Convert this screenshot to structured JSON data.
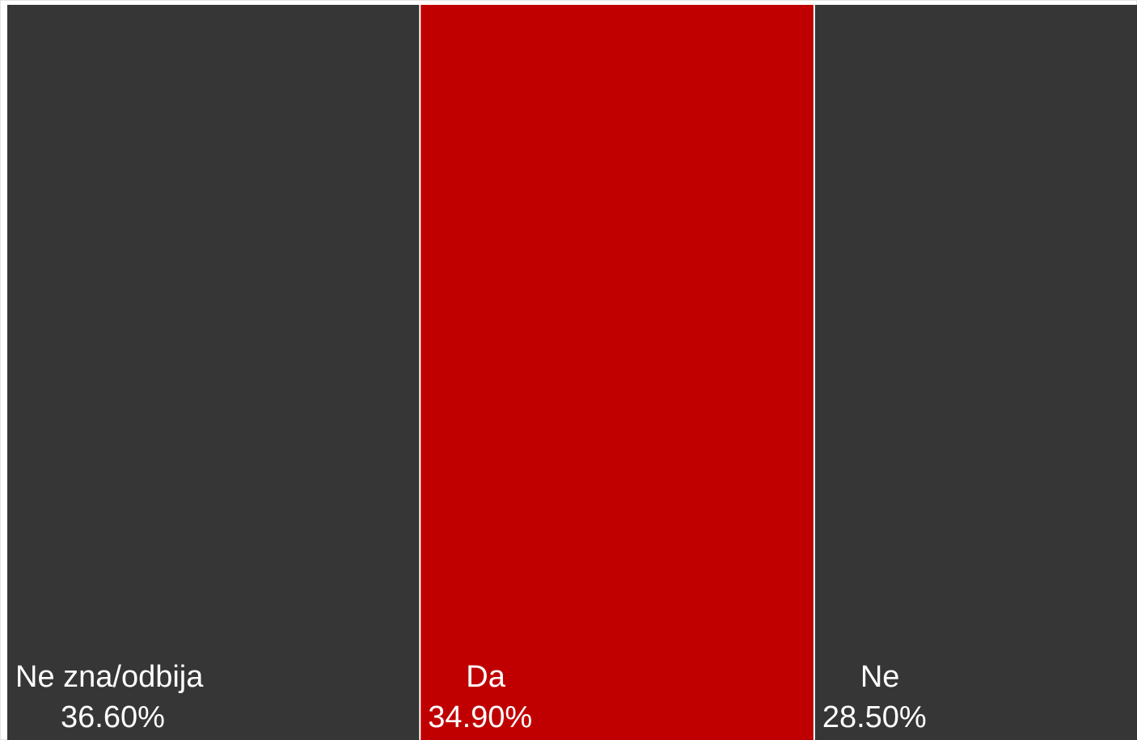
{
  "chart_data": {
    "type": "bar",
    "subtype": "stacked-100-horizontal",
    "categories": [
      "Ne zna/odbija",
      "Da",
      "Ne"
    ],
    "values": [
      36.6,
      34.9,
      28.5
    ],
    "value_labels": [
      "36.60%",
      "34.90%",
      "28.50%"
    ],
    "unit": "%",
    "colors": [
      "#363636",
      "#c00000",
      "#363636"
    ],
    "separator_color": "#ffffff",
    "background": "#ffffff",
    "grid": false,
    "legend": "none"
  }
}
